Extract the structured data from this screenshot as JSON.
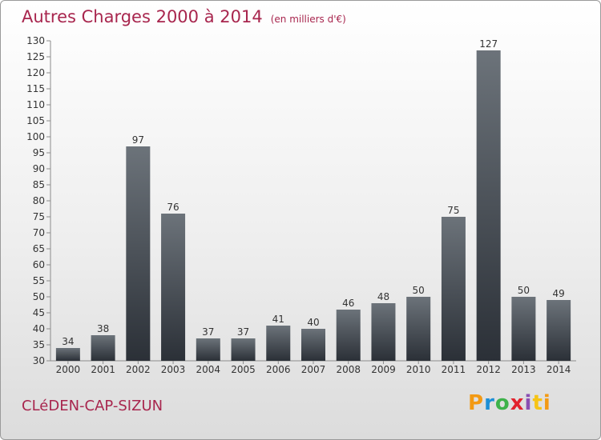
{
  "header": {
    "title": "Autres Charges 2000 à 2014",
    "unit": "(en milliers d'€)"
  },
  "footer": {
    "town": "CLéDEN-CAP-SIZUN",
    "brand_letters": [
      "P",
      "r",
      "o",
      "x",
      "i",
      "t",
      "i"
    ]
  },
  "colors": {
    "title": "#a8264e",
    "bar_top": "#6c737a",
    "bar_bottom": "#2b3037"
  },
  "chart_data": {
    "type": "bar",
    "title": "Autres Charges 2000 à 2014",
    "subtitle": "(en milliers d'€)",
    "categories": [
      "2000",
      "2001",
      "2002",
      "2003",
      "2004",
      "2005",
      "2006",
      "2007",
      "2008",
      "2009",
      "2010",
      "2011",
      "2012",
      "2013",
      "2014"
    ],
    "values": [
      34,
      38,
      97,
      76,
      37,
      37,
      41,
      40,
      46,
      48,
      50,
      75,
      127,
      50,
      49
    ],
    "ylim": [
      30,
      130
    ],
    "ytick_step": 5,
    "grid": false,
    "data_labels": true
  }
}
